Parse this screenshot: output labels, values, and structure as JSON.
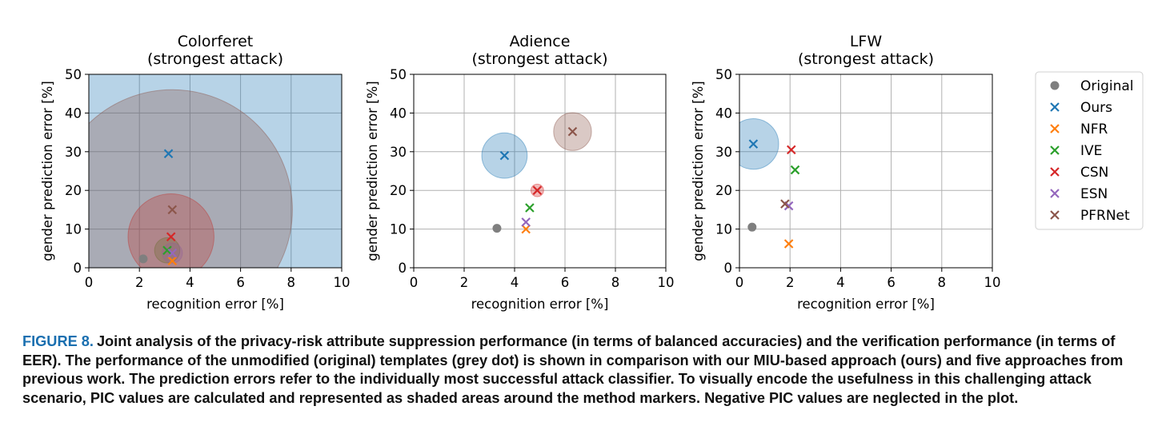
{
  "chart_data": [
    {
      "type": "scatter",
      "title": "Colorferet\n(strongest attack)",
      "xlabel": "recognition error [%]",
      "ylabel": "gender prediction error [%]",
      "xlim": [
        0,
        10
      ],
      "ylim": [
        0,
        50
      ],
      "xticks": [
        0,
        2,
        4,
        6,
        8,
        10
      ],
      "yticks": [
        0,
        10,
        20,
        30,
        40,
        50
      ],
      "grid": true,
      "series": [
        {
          "name": "Original",
          "marker": "dot",
          "color": "#7f7f7f",
          "x": 2.15,
          "y": 2.3
        },
        {
          "name": "Ours",
          "marker": "x",
          "color": "#1f77b4",
          "x": 3.15,
          "y": 29.5,
          "pic_radius": 8.4
        },
        {
          "name": "NFR",
          "marker": "x",
          "color": "#ff7f0e",
          "x": 3.3,
          "y": 1.8
        },
        {
          "name": "IVE",
          "marker": "x",
          "color": "#2ca02c",
          "x": 3.1,
          "y": 4.5,
          "pic_radius": 0.5
        },
        {
          "name": "CSN",
          "marker": "x",
          "color": "#d62728",
          "x": 3.25,
          "y": 8.0,
          "pic_radius": 1.7
        },
        {
          "name": "ESN",
          "marker": "x",
          "color": "#9467bd",
          "x": 3.3,
          "y": 3.8,
          "pic_radius": 0.4
        },
        {
          "name": "PFRNet",
          "marker": "x",
          "color": "#8c564b",
          "x": 3.3,
          "y": 15.0,
          "pic_radius": 4.75
        }
      ]
    },
    {
      "type": "scatter",
      "title": "Adience\n(strongest attack)",
      "xlabel": "recognition error [%]",
      "ylabel": "gender prediction error [%]",
      "xlim": [
        0,
        10
      ],
      "ylim": [
        0,
        50
      ],
      "xticks": [
        0,
        2,
        4,
        6,
        8,
        10
      ],
      "yticks": [
        0,
        10,
        20,
        30,
        40,
        50
      ],
      "grid": true,
      "series": [
        {
          "name": "Original",
          "marker": "dot",
          "color": "#7f7f7f",
          "x": 3.3,
          "y": 10.2
        },
        {
          "name": "Ours",
          "marker": "x",
          "color": "#1f77b4",
          "x": 3.6,
          "y": 29.0,
          "pic_radius": 0.9
        },
        {
          "name": "NFR",
          "marker": "x",
          "color": "#ff7f0e",
          "x": 4.45,
          "y": 10.0
        },
        {
          "name": "IVE",
          "marker": "x",
          "color": "#2ca02c",
          "x": 4.6,
          "y": 15.5
        },
        {
          "name": "CSN",
          "marker": "x",
          "color": "#d62728",
          "x": 4.9,
          "y": 20.0,
          "pic_radius": 0.25
        },
        {
          "name": "ESN",
          "marker": "x",
          "color": "#9467bd",
          "x": 4.45,
          "y": 11.8
        },
        {
          "name": "PFRNet",
          "marker": "x",
          "color": "#8c564b",
          "x": 6.3,
          "y": 35.2,
          "pic_radius": 0.75
        }
      ]
    },
    {
      "type": "scatter",
      "title": "LFW\n(strongest attack)",
      "xlabel": "recognition error [%]",
      "ylabel": "gender prediction error [%]",
      "xlim": [
        0,
        10
      ],
      "ylim": [
        0,
        50
      ],
      "xticks": [
        0,
        2,
        4,
        6,
        8,
        10
      ],
      "yticks": [
        0,
        10,
        20,
        30,
        40,
        50
      ],
      "grid": true,
      "series": [
        {
          "name": "Original",
          "marker": "dot",
          "color": "#7f7f7f",
          "x": 0.5,
          "y": 10.5
        },
        {
          "name": "Ours",
          "marker": "x",
          "color": "#1f77b4",
          "x": 0.55,
          "y": 32.0,
          "pic_radius": 1.0
        },
        {
          "name": "NFR",
          "marker": "x",
          "color": "#ff7f0e",
          "x": 1.95,
          "y": 6.2
        },
        {
          "name": "IVE",
          "marker": "x",
          "color": "#2ca02c",
          "x": 2.2,
          "y": 25.3
        },
        {
          "name": "CSN",
          "marker": "x",
          "color": "#d62728",
          "x": 2.05,
          "y": 30.5
        },
        {
          "name": "ESN",
          "marker": "x",
          "color": "#9467bd",
          "x": 1.95,
          "y": 16.0
        },
        {
          "name": "PFRNet",
          "marker": "x",
          "color": "#8c564b",
          "x": 1.8,
          "y": 16.5
        }
      ]
    }
  ],
  "legend": {
    "placement": "right",
    "items": [
      {
        "label": "Original",
        "marker": "dot",
        "color": "#7f7f7f"
      },
      {
        "label": "Ours",
        "marker": "x",
        "color": "#1f77b4"
      },
      {
        "label": "NFR",
        "marker": "x",
        "color": "#ff7f0e"
      },
      {
        "label": "IVE",
        "marker": "x",
        "color": "#2ca02c"
      },
      {
        "label": "CSN",
        "marker": "x",
        "color": "#d62728"
      },
      {
        "label": "ESN",
        "marker": "x",
        "color": "#9467bd"
      },
      {
        "label": "PFRNet",
        "marker": "x",
        "color": "#8c564b"
      }
    ]
  },
  "caption": {
    "label": "FIGURE 8.",
    "text": "Joint analysis of the privacy-risk attribute suppression performance (in terms of balanced accuracies) and the verification performance (in terms of EER). The performance of the unmodified (original) templates (grey dot) is shown in comparison with our MIU-based approach (ours) and five approaches from previous work. The prediction errors refer to the individually most successful attack classifier. To visually encode the usefulness in this challenging attack scenario, PIC values are calculated and represented as shaded areas around the method markers. Negative PIC values are neglected in the plot."
  }
}
